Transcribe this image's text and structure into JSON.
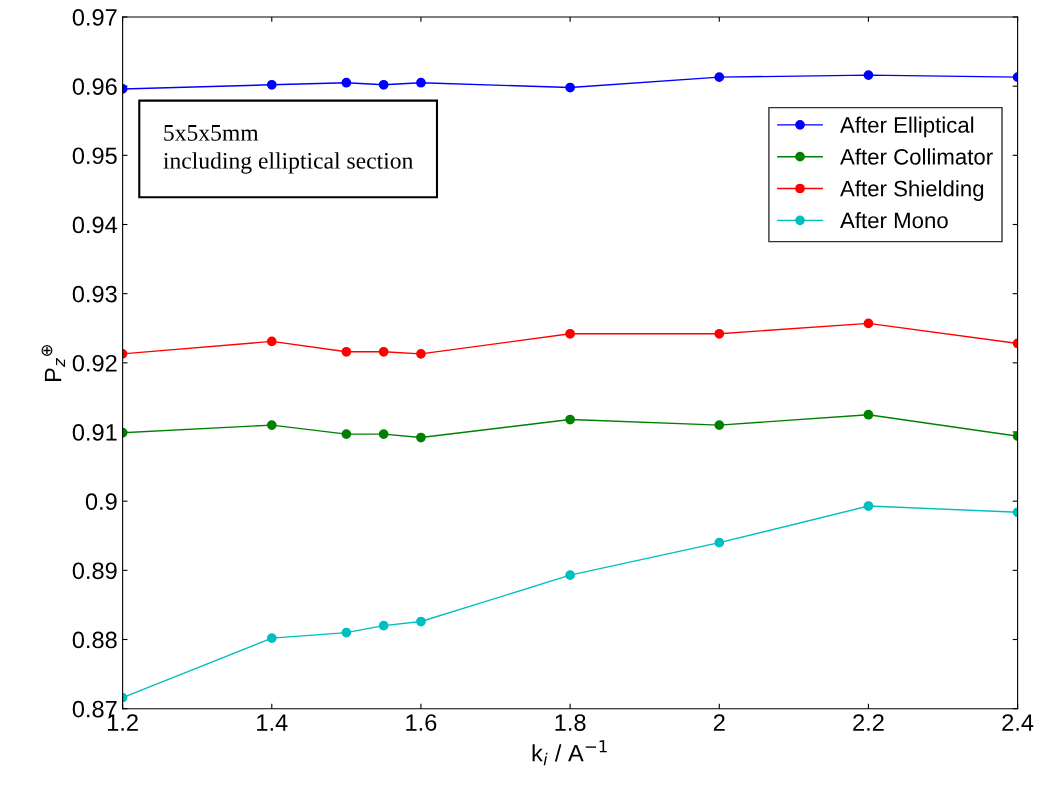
{
  "chart_data": {
    "type": "line",
    "xlabel": "k$_{i}$ / A$^{−1}$",
    "ylabel": "P$_{z}$$^{⊕}$",
    "x": [
      1.2,
      1.4,
      1.5,
      1.55,
      1.6,
      1.8,
      2.0,
      2.2,
      2.4
    ],
    "series": [
      {
        "name": "After Elliptical",
        "color": "#0000ff",
        "values": [
          0.9596,
          0.9602,
          0.9605,
          0.9602,
          0.9605,
          0.9598,
          0.9613,
          0.9616,
          0.9613
        ]
      },
      {
        "name": "After Collimator",
        "color": "#008000",
        "values": [
          0.9099,
          0.911,
          0.9097,
          0.9097,
          0.9092,
          0.9118,
          0.911,
          0.9125,
          0.9094
        ]
      },
      {
        "name": "After Shielding",
        "color": "#ff0000",
        "values": [
          0.9213,
          0.9231,
          0.9216,
          0.9216,
          0.9213,
          0.9242,
          0.9242,
          0.9257,
          0.9228
        ]
      },
      {
        "name": "After Mono",
        "color": "#00bfbf",
        "values": [
          0.8716,
          0.8802,
          0.881,
          0.882,
          0.8826,
          0.8893,
          0.894,
          0.8993,
          0.8984
        ]
      }
    ],
    "xlim": [
      1.2,
      2.4
    ],
    "xticks": [
      1.2,
      1.4,
      1.6,
      1.8,
      2,
      2.2,
      2.4
    ],
    "ylim": [
      0.87,
      0.97
    ],
    "yticks": [
      0.87,
      0.88,
      0.89,
      0.9,
      0.91,
      0.92,
      0.93,
      0.94,
      0.95,
      0.96,
      0.97
    ],
    "annotations": [
      "5x5x5mm\nincluding elliptical section"
    ],
    "legend": "top right",
    "marker": "circle",
    "line_style": "solid",
    "grid": false
  }
}
